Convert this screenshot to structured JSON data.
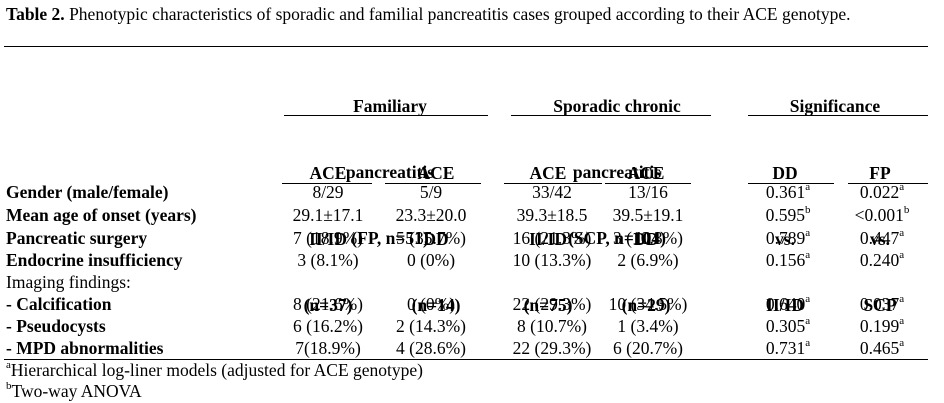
{
  "caption": {
    "label": "Table 2.",
    "text": "Phenotypic characteristics of sporadic and familial pancreatitis cases grouped according to their ACE genotype."
  },
  "groups": {
    "fp": [
      "Familiary",
      "pancreatitis",
      "(FP, n=51)"
    ],
    "scp": [
      "Sporadic chronic",
      "pancreatitis",
      "(SCP, n=104)"
    ],
    "sig": "Significance"
  },
  "subheaders": {
    "fp_iiid": [
      "ACE",
      "II/ID",
      "(n=37)"
    ],
    "fp_dd": [
      "ACE",
      "DD",
      "(n=14)"
    ],
    "scp_iiid": [
      "ACE",
      "II/ID",
      "(n=75)"
    ],
    "scp_dd": [
      "ACE",
      "DD",
      "(n=29)"
    ],
    "dd_vs": [
      "DD",
      "vs.",
      "II/ID"
    ],
    "fp_vs": [
      "FP",
      "vs.",
      "SCP"
    ]
  },
  "rows": [
    {
      "label": "Gender (male/female)",
      "bold": true,
      "c1": "8/29",
      "c2": "5/9",
      "c3": "33/42",
      "c4": "13/16",
      "p1": "0.361",
      "p1sup": "a",
      "p2": "0.022",
      "p2sup": "a"
    },
    {
      "label": "Mean age of onset (years)",
      "bold": true,
      "c1": "29.1±17.1",
      "c2": "23.3±20.0",
      "c3": "39.3±18.5",
      "c4": "39.5±19.1",
      "p1": "0.595",
      "p1sup": "b",
      "p2": "<0.001",
      "p2sup": "b"
    },
    {
      "label": "Pancreatic surgery",
      "bold": true,
      "c1": "7 (18.9%)",
      "c2": "5 (35.7%)",
      "c3": "16 (21.3%)",
      "c4": "3 (10.3%)",
      "p1": "0.789",
      "p1sup": "a",
      "p2": "0.447",
      "p2sup": "a"
    },
    {
      "label": "Endocrine insufficiency",
      "bold": true,
      "c1": "3 (8.1%)",
      "c2": "0 (0%)",
      "c3": "10 (13.3%)",
      "c4": "2 (6.9%)",
      "p1": "0.156",
      "p1sup": "a",
      "p2": "0.240",
      "p2sup": "a"
    },
    {
      "label": "Imaging findings:",
      "bold": false,
      "c1": "",
      "c2": "",
      "c3": "",
      "c4": "",
      "p1": "",
      "p1sup": "",
      "p2": "",
      "p2sup": ""
    },
    {
      "label": "- Calcification",
      "bold": true,
      "c1": "8 (21.6%)",
      "c2": "0 (0%)",
      "c3": "22 (29.3%)",
      "c4": "10 (34.5%)",
      "p1": "0.640",
      "p1sup": "a",
      "p2": "0.037",
      "p2sup": "a"
    },
    {
      "label": "- Pseudocysts",
      "bold": true,
      "c1": "6 (16.2%)",
      "c2": "2 (14.3%)",
      "c3": "8 (10.7%)",
      "c4": "1 (3.4%)",
      "p1": "0.305",
      "p1sup": "a",
      "p2": "0.199",
      "p2sup": "a"
    },
    {
      "label": "- MPD abnormalities",
      "bold": true,
      "c1": "7(18.9%)",
      "c2": "4 (28.6%)",
      "c3": "22 (29.3%)",
      "c4": "6 (20.7%)",
      "p1": "0.731",
      "p1sup": "a",
      "p2": "0.465",
      "p2sup": "a"
    }
  ],
  "footnotes": [
    {
      "sup": "a",
      "text": "Hierarchical log-liner models (adjusted for ACE genotype)"
    },
    {
      "sup": "b",
      "text": "Two-way ANOVA"
    }
  ]
}
